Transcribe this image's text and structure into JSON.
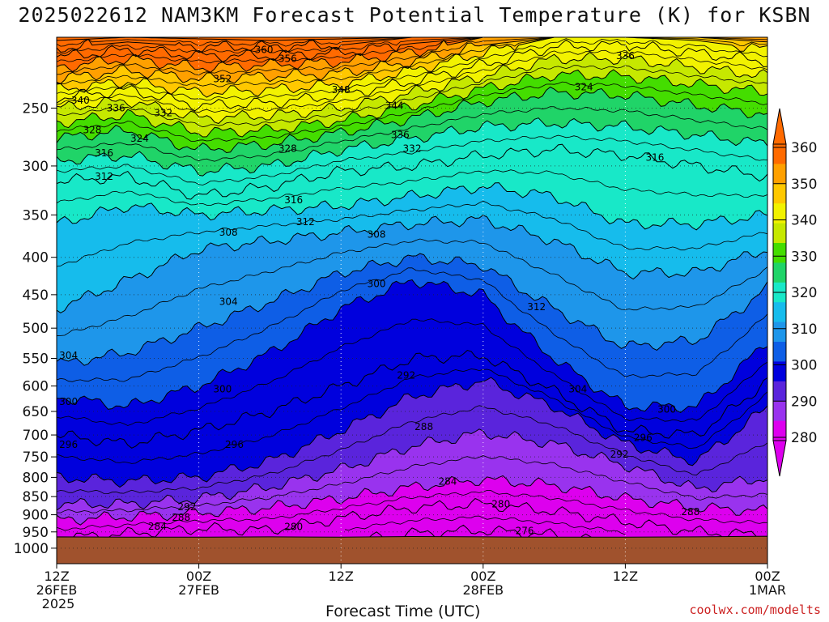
{
  "chart_data": {
    "type": "heatmap",
    "title": "2025022612 NAM3KM Forecast Potential Temperature (K) for KSBN",
    "xlabel": "Forecast Time (UTC)",
    "ylabel": "",
    "x_ticks": [
      {
        "hour": 0,
        "line1": "12Z",
        "line2": "26FEB",
        "line3": "2025"
      },
      {
        "hour": 12,
        "line1": "00Z",
        "line2": "27FEB",
        "line3": ""
      },
      {
        "hour": 24,
        "line1": "12Z",
        "line2": "",
        "line3": ""
      },
      {
        "hour": 36,
        "line1": "00Z",
        "line2": "28FEB",
        "line3": ""
      },
      {
        "hour": 48,
        "line1": "12Z",
        "line2": "",
        "line3": ""
      },
      {
        "hour": 60,
        "line1": "00Z",
        "line2": "1MAR",
        "line3": ""
      }
    ],
    "xlim_hours": [
      0,
      60
    ],
    "y_ticks": [
      250,
      300,
      350,
      400,
      450,
      500,
      550,
      600,
      650,
      700,
      750,
      800,
      850,
      900,
      950,
      1000
    ],
    "ylim_hpa": [
      200,
      1050
    ],
    "y_scale": "log-pressure",
    "grid": true,
    "colorbar": {
      "levels": [
        280,
        290,
        300,
        310,
        320,
        330,
        340,
        350,
        360
      ],
      "labels": [
        "280",
        "290",
        "300",
        "310",
        "320",
        "330",
        "340",
        "350",
        "360"
      ],
      "colors": [
        "#dd00ee",
        "#9933ee",
        "#5a24dc",
        "#0000dd",
        "#0e5ee6",
        "#1e96ea",
        "#16bcec",
        "#18e8c8",
        "#20d468",
        "#44dd00",
        "#c6e800",
        "#f2f200",
        "#ffc800",
        "#ffa000",
        "#ff6a00"
      ],
      "color_bounds": [
        280,
        285,
        290,
        295,
        300,
        305,
        310,
        315,
        320,
        325,
        330,
        335,
        340,
        345,
        350,
        355
      ]
    },
    "ground_color": "#a0522d",
    "surface_pressure": [
      [
        0,
        965
      ],
      [
        6,
        966
      ],
      [
        12,
        966
      ],
      [
        18,
        965
      ],
      [
        24,
        966
      ],
      [
        30,
        964
      ],
      [
        36,
        965
      ],
      [
        42,
        966
      ],
      [
        48,
        966
      ],
      [
        54,
        965
      ],
      [
        60,
        963
      ]
    ],
    "isentrope_pressures": {
      "hours": [
        0,
        6,
        12,
        18,
        24,
        30,
        36,
        42,
        48,
        54,
        60
      ],
      "levels": [
        {
          "theta": 276,
          "p": [
            null,
            null,
            null,
            null,
            980,
            955,
            945,
            960,
            985,
            null,
            null
          ]
        },
        {
          "theta": 280,
          "p": [
            970,
            955,
            940,
            945,
            910,
            880,
            870,
            890,
            920,
            950,
            960
          ]
        },
        {
          "theta": 284,
          "p": [
            915,
            905,
            895,
            880,
            855,
            825,
            805,
            820,
            855,
            880,
            890
          ]
        },
        {
          "theta": 288,
          "p": [
            870,
            870,
            855,
            825,
            780,
            725,
            695,
            720,
            770,
            830,
            800
          ]
        },
        {
          "theta": 292,
          "p": [
            800,
            810,
            800,
            760,
            690,
            620,
            590,
            640,
            720,
            760,
            640
          ]
        },
        {
          "theta": 296,
          "p": [
            700,
            720,
            690,
            650,
            600,
            550,
            545,
            610,
            690,
            700,
            590
          ]
        },
        {
          "theta": 300,
          "p": [
            620,
            640,
            600,
            540,
            470,
            430,
            450,
            550,
            640,
            640,
            520
          ]
        },
        {
          "theta": 304,
          "p": [
            560,
            540,
            500,
            460,
            420,
            400,
            410,
            470,
            530,
            520,
            440
          ]
        },
        {
          "theta": 308,
          "p": [
            470,
            430,
            390,
            380,
            370,
            360,
            355,
            380,
            420,
            420,
            390
          ]
        },
        {
          "theta": 312,
          "p": [
            360,
            340,
            350,
            345,
            340,
            330,
            320,
            330,
            360,
            360,
            350
          ]
        },
        {
          "theta": 316,
          "p": [
            315,
            310,
            330,
            320,
            305,
            300,
            290,
            285,
            290,
            300,
            310
          ]
        },
        {
          "theta": 320,
          "p": [
            295,
            290,
            305,
            300,
            285,
            275,
            265,
            262,
            265,
            272,
            280
          ]
        },
        {
          "theta": 324,
          "p": [
            275,
            268,
            285,
            280,
            270,
            258,
            245,
            238,
            240,
            248,
            255
          ]
        },
        {
          "theta": 328,
          "p": [
            262,
            255,
            270,
            268,
            260,
            248,
            235,
            225,
            226,
            232,
            238
          ]
        },
        {
          "theta": 332,
          "p": [
            250,
            244,
            258,
            256,
            250,
            238,
            226,
            214,
            214,
            220,
            226
          ]
        },
        {
          "theta": 336,
          "p": [
            242,
            236,
            248,
            246,
            240,
            230,
            218,
            206,
            205,
            210,
            216
          ]
        },
        {
          "theta": 340,
          "p": [
            236,
            230,
            238,
            236,
            232,
            222,
            210,
            200,
            200,
            202,
            208
          ]
        },
        {
          "theta": 344,
          "p": [
            228,
            222,
            228,
            226,
            224,
            216,
            205,
            200,
            200,
            200,
            203
          ]
        },
        {
          "theta": 348,
          "p": [
            220,
            214,
            220,
            218,
            216,
            210,
            200,
            200,
            200,
            200,
            200
          ]
        },
        {
          "theta": 352,
          "p": [
            213,
            208,
            212,
            212,
            210,
            204,
            200,
            200,
            200,
            200,
            200
          ]
        },
        {
          "theta": 356,
          "p": [
            207,
            203,
            206,
            206,
            205,
            200,
            200,
            200,
            200,
            200,
            200
          ]
        },
        {
          "theta": 360,
          "p": [
            202,
            200,
            201,
            202,
            201,
            200,
            200,
            200,
            200,
            200,
            200
          ]
        }
      ]
    },
    "contour_labels": [
      {
        "text": "360",
        "hour": 17.5,
        "p": 208
      },
      {
        "text": "356",
        "hour": 19.5,
        "p": 214
      },
      {
        "text": "352",
        "hour": 14.0,
        "p": 228
      },
      {
        "text": "348",
        "hour": 24.0,
        "p": 236
      },
      {
        "text": "344",
        "hour": 28.5,
        "p": 248
      },
      {
        "text": "340",
        "hour": 2.0,
        "p": 244
      },
      {
        "text": "336",
        "hour": 5.0,
        "p": 250
      },
      {
        "text": "332",
        "hour": 9.0,
        "p": 254
      },
      {
        "text": "328",
        "hour": 3.0,
        "p": 268
      },
      {
        "text": "324",
        "hour": 7.0,
        "p": 275
      },
      {
        "text": "316",
        "hour": 4.0,
        "p": 288
      },
      {
        "text": "312",
        "hour": 4.0,
        "p": 310
      },
      {
        "text": "328",
        "hour": 19.5,
        "p": 284
      },
      {
        "text": "336",
        "hour": 29.0,
        "p": 272
      },
      {
        "text": "332",
        "hour": 30.0,
        "p": 284
      },
      {
        "text": "336",
        "hour": 48.0,
        "p": 212
      },
      {
        "text": "324",
        "hour": 44.5,
        "p": 234
      },
      {
        "text": "316",
        "hour": 50.5,
        "p": 292
      },
      {
        "text": "316",
        "hour": 20.0,
        "p": 334
      },
      {
        "text": "312",
        "hour": 21.0,
        "p": 358
      },
      {
        "text": "308",
        "hour": 14.5,
        "p": 370
      },
      {
        "text": "308",
        "hour": 27.0,
        "p": 372
      },
      {
        "text": "300",
        "hour": 27.0,
        "p": 435
      },
      {
        "text": "304",
        "hour": 14.5,
        "p": 460
      },
      {
        "text": "312",
        "hour": 40.5,
        "p": 468
      },
      {
        "text": "304",
        "hour": 1.0,
        "p": 545
      },
      {
        "text": "292",
        "hour": 29.5,
        "p": 580
      },
      {
        "text": "300",
        "hour": 1.0,
        "p": 630
      },
      {
        "text": "300",
        "hour": 14.0,
        "p": 606
      },
      {
        "text": "304",
        "hour": 44.0,
        "p": 606
      },
      {
        "text": "300",
        "hour": 51.5,
        "p": 646
      },
      {
        "text": "288",
        "hour": 31.0,
        "p": 682
      },
      {
        "text": "296",
        "hour": 1.0,
        "p": 722
      },
      {
        "text": "296",
        "hour": 15.0,
        "p": 722
      },
      {
        "text": "296",
        "hour": 49.5,
        "p": 706
      },
      {
        "text": "292",
        "hour": 47.5,
        "p": 744
      },
      {
        "text": "284",
        "hour": 33.0,
        "p": 810
      },
      {
        "text": "280",
        "hour": 37.5,
        "p": 870
      },
      {
        "text": "292",
        "hour": 11.0,
        "p": 878
      },
      {
        "text": "288",
        "hour": 10.5,
        "p": 908
      },
      {
        "text": "288",
        "hour": 53.5,
        "p": 892
      },
      {
        "text": "284",
        "hour": 8.5,
        "p": 934
      },
      {
        "text": "280",
        "hour": 20.0,
        "p": 935
      },
      {
        "text": "276",
        "hour": 39.5,
        "p": 947
      }
    ]
  },
  "footer": {
    "credit": "coolwx.com/modelts"
  }
}
